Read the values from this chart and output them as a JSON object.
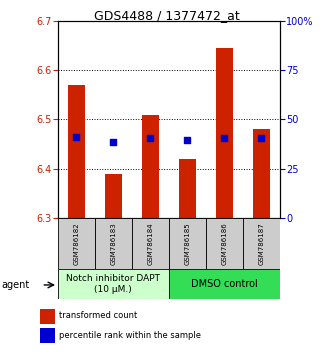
{
  "title": "GDS4488 / 1377472_at",
  "samples": [
    "GSM786182",
    "GSM786183",
    "GSM786184",
    "GSM786185",
    "GSM786186",
    "GSM786187"
  ],
  "bar_bottoms": [
    6.3,
    6.3,
    6.3,
    6.3,
    6.3,
    6.3
  ],
  "bar_tops": [
    6.57,
    6.39,
    6.51,
    6.42,
    6.645,
    6.48
  ],
  "percentile_values": [
    6.465,
    6.455,
    6.462,
    6.458,
    6.463,
    6.462
  ],
  "ylim_left": [
    6.3,
    6.7
  ],
  "ylim_right": [
    0,
    100
  ],
  "yticks_left": [
    6.3,
    6.4,
    6.5,
    6.6,
    6.7
  ],
  "yticks_right": [
    0,
    25,
    50,
    75,
    100
  ],
  "ytick_labels_right": [
    "0",
    "25",
    "50",
    "75",
    "100%"
  ],
  "bar_color": "#cc2200",
  "dot_color": "#0000cc",
  "grid_color": "#000000",
  "bar_width": 0.45,
  "group1_label": "Notch inhibitor DAPT\n(10 μM.)",
  "group2_label": "DMSO control",
  "group1_bg": "#ccffcc",
  "group2_bg": "#33dd55",
  "agent_label": "agent",
  "legend_bar_label": "transformed count",
  "legend_dot_label": "percentile rank within the sample",
  "xlabel_color": "#cc2200",
  "right_axis_color": "#0000cc",
  "tick_bg_color": "#cccccc",
  "title_fontsize": 9,
  "tick_fontsize": 7,
  "sample_fontsize": 5,
  "legend_fontsize": 6,
  "group_fontsize": 6.5
}
